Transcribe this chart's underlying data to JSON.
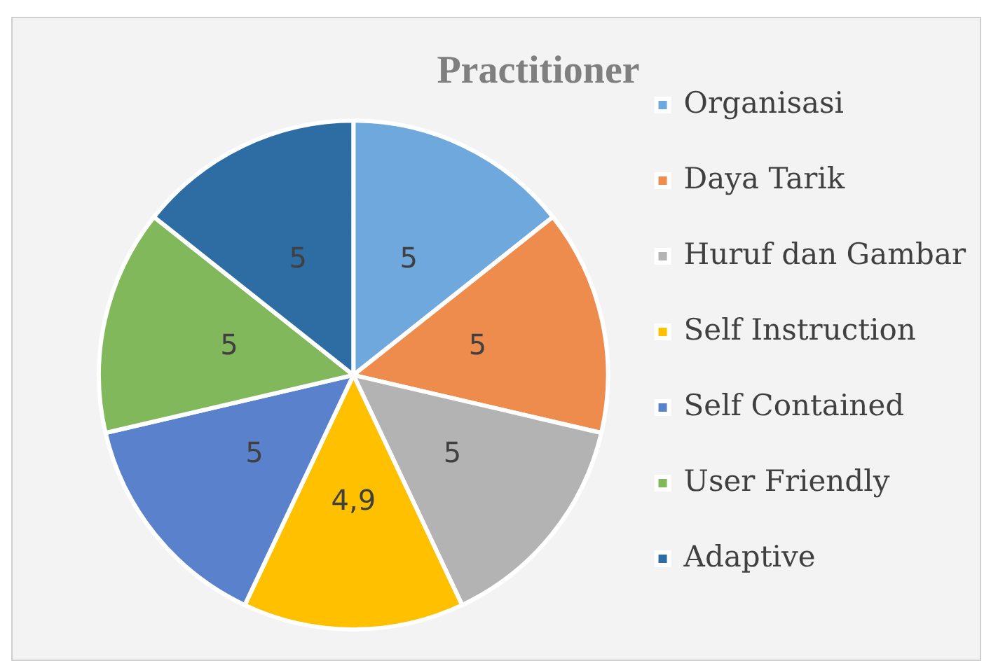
{
  "chart_data": {
    "type": "pie",
    "title": "Practitioner",
    "categories": [
      "Organisasi",
      "Daya Tarik",
      "Huruf dan Gambar",
      "Self Instruction",
      "Self Contained",
      "User Friendly",
      "Adaptive"
    ],
    "values": [
      5,
      5,
      5,
      4.9,
      5,
      5,
      5
    ],
    "value_labels": [
      "5",
      "5",
      "5",
      "4,9",
      "5",
      "5",
      "5"
    ],
    "colors": [
      "#6fa8dc",
      "#ee8c4e",
      "#b3b3b3",
      "#ffc000",
      "#5a82cc",
      "#82b85c",
      "#2e6ca4"
    ],
    "legend": "right"
  }
}
